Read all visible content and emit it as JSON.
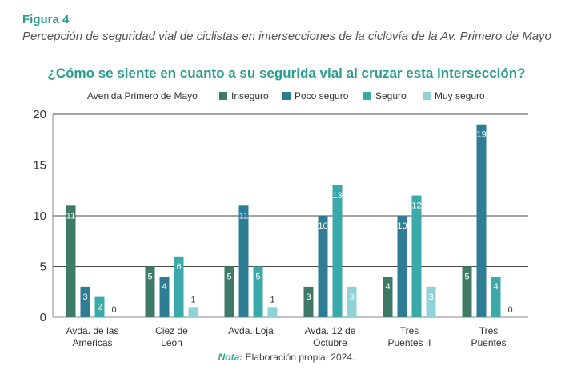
{
  "figure_label": "Figura 4",
  "figure_caption": "Percepción de seguridad vial de ciclistas en intersecciones de la ciclovía de la Av. Primero de Mayo",
  "note": {
    "label": "Nota:",
    "text": " Elaboración propia, 2024."
  },
  "chart_data": {
    "type": "bar",
    "title": "¿Cómo se siente en cuanto a su segurida vial al cruzar esta intersección?",
    "legend_title": "Avenida Primero de Mayo",
    "legend_position": "top",
    "categories": [
      [
        "Avda. de las",
        "Américas"
      ],
      [
        "Ciez de",
        "Leon"
      ],
      [
        "Avda. Loja"
      ],
      [
        "Avda. 12 de",
        "Octubre"
      ],
      [
        "Tres",
        "Puentes II"
      ],
      [
        "Tres",
        "Puentes"
      ]
    ],
    "series": [
      {
        "name": "Inseguro",
        "color": "#3f7a69",
        "values": [
          11,
          5,
          5,
          3,
          4,
          5
        ]
      },
      {
        "name": "Poco seguro",
        "color": "#2e7d95",
        "values": [
          3,
          4,
          11,
          10,
          10,
          19
        ]
      },
      {
        "name": "Seguro",
        "color": "#3aa9a9",
        "values": [
          2,
          6,
          5,
          13,
          12,
          4
        ]
      },
      {
        "name": "Muy seguro",
        "color": "#8fd3d8",
        "values": [
          0,
          1,
          1,
          3,
          3,
          0
        ]
      }
    ],
    "y_ticks": [
      0,
      5,
      10,
      15,
      20
    ],
    "ylim": [
      0,
      20
    ],
    "grid": true
  }
}
